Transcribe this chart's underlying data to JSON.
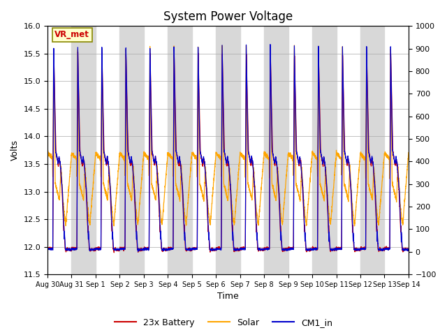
{
  "title": "System Power Voltage",
  "xlabel": "Time",
  "ylabel": "Volts",
  "ylim_left": [
    11.5,
    16.0
  ],
  "ylim_right": [
    -100,
    1000
  ],
  "yticks_left": [
    11.5,
    12.0,
    12.5,
    13.0,
    13.5,
    14.0,
    14.5,
    15.0,
    15.5,
    16.0
  ],
  "yticks_right": [
    -100,
    0,
    100,
    200,
    300,
    400,
    500,
    600,
    700,
    800,
    900,
    1000
  ],
  "n_days": 15,
  "xtick_labels": [
    "Aug 30",
    "Aug 31",
    "Sep 1",
    "Sep 2",
    "Sep 3",
    "Sep 4",
    "Sep 5",
    "Sep 6",
    "Sep 7",
    "Sep 8",
    "Sep 9",
    "Sep 10",
    "Sep 11",
    "Sep 12",
    "Sep 13",
    "Sep 14"
  ],
  "annotation_text": "VR_met",
  "legend_labels": [
    "23x Battery",
    "Solar",
    "CM1_in"
  ],
  "colors": {
    "battery": "#cc0000",
    "solar": "#ffa500",
    "cm1": "#0000cc"
  },
  "band_color": "#d8d8d8",
  "background_color": "#ffffff",
  "title_fontsize": 12,
  "axis_fontsize": 9,
  "tick_fontsize": 8
}
